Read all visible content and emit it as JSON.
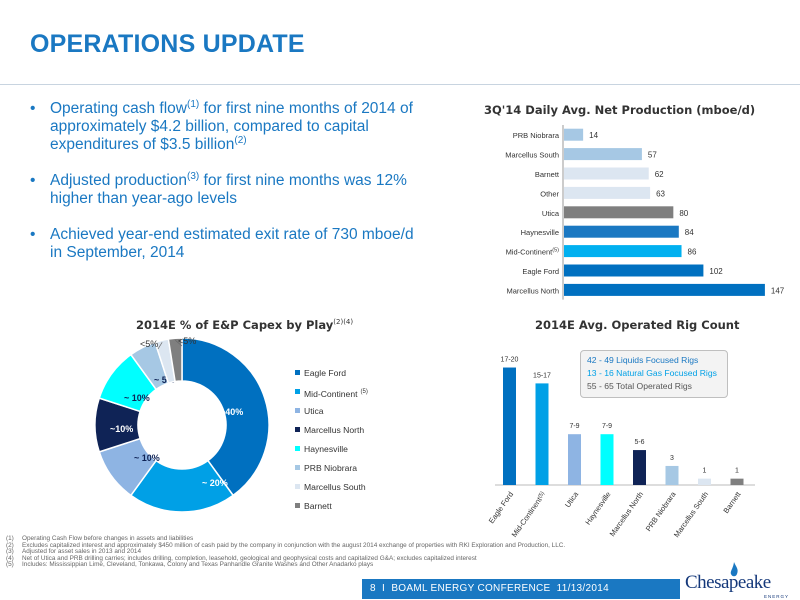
{
  "title": "OPERATIONS UPDATE",
  "bullets": [
    {
      "text_a": "Operating cash flow",
      "sup_a": "(1)",
      "text_b": " for first nine months of 2014 of approximately $4.2 billion, compared to capital expenditures of $3.5 billion",
      "sup_b": "(2)"
    },
    {
      "text_a": "Adjusted production",
      "sup_a": "(3)",
      "text_b": " for first nine months was 12% higher than year-ago levels",
      "sup_b": ""
    },
    {
      "text_a": "Achieved year-end estimated exit rate of 730 mboe/d in September, 2014",
      "sup_a": "",
      "text_b": "",
      "sup_b": ""
    }
  ],
  "chart_data": [
    {
      "type": "bar",
      "orientation": "horizontal",
      "title": "3Q'14 Daily Avg. Net Production (mboe/d)",
      "categories": [
        "PRB Niobrara",
        "Marcellus South",
        "Barnett",
        "Other",
        "Utica",
        "Haynesville",
        "Mid-Continent",
        "Eagle Ford",
        "Marcellus North"
      ],
      "category_sups": [
        "",
        "",
        "",
        "",
        "",
        "",
        "(5)",
        "",
        ""
      ],
      "values": [
        14,
        57,
        62,
        63,
        80,
        84,
        86,
        102,
        147
      ],
      "colors": [
        "#a6c8e4",
        "#a6c8e4",
        "#dce6f1",
        "#dce6f1",
        "#7f7f7f",
        "#1a78c2",
        "#00b0f0",
        "#0070c0",
        "#0070c0"
      ],
      "xlim": [
        0,
        150
      ],
      "grid": false,
      "legend": "none"
    },
    {
      "type": "pie",
      "title": "2014E % of E&P Capex by Play",
      "title_sup": "(2)(4)",
      "slices": [
        {
          "name": "Eagle Ford",
          "sup": "",
          "value": 40,
          "label": "~40%",
          "color": "#0070c0"
        },
        {
          "name": "Mid-Continent",
          "sup": "(5)",
          "value": 20,
          "label": "~ 20%",
          "color": "#00a0e6"
        },
        {
          "name": "Utica",
          "sup": "",
          "value": 10,
          "label": "~ 10%",
          "color": "#8eb4e3"
        },
        {
          "name": "Marcellus North",
          "sup": "",
          "value": 10,
          "label": "~10%",
          "color": "#0f2356"
        },
        {
          "name": "Haynesville",
          "sup": "",
          "value": 10,
          "label": "~ 10%",
          "color": "#00ffff"
        },
        {
          "name": "PRB Niobrara",
          "sup": "",
          "value": 5,
          "label": "~ 5%",
          "color": "#a6c8e4"
        },
        {
          "name": "Marcellus South",
          "sup": "",
          "value": 2.5,
          "label": "<5%",
          "color": "#dce6f1"
        },
        {
          "name": "Barnett",
          "sup": "",
          "value": 2.5,
          "label": "<5%",
          "color": "#7f7f7f"
        }
      ],
      "donut": true,
      "legend": "right"
    },
    {
      "type": "bar",
      "title": "2014E Avg. Operated Rig Count",
      "categories": [
        "Eagle Ford",
        "Mid-Continent",
        "Utica",
        "Haynesville",
        "Marcellus North",
        "PRB Niobrara",
        "Marcellus South",
        "Barnett"
      ],
      "category_sups": [
        "",
        "(5)",
        "",
        "",
        "",
        "",
        "",
        ""
      ],
      "values": [
        18.5,
        16,
        8,
        8,
        5.5,
        3,
        1,
        1
      ],
      "value_labels": [
        "17-20",
        "15-17",
        "7-9",
        "7-9",
        "5-6",
        "3",
        "1",
        "1"
      ],
      "colors": [
        "#0070c0",
        "#00a0e6",
        "#8eb4e3",
        "#00ffff",
        "#0f2356",
        "#a6c8e4",
        "#dce6f1",
        "#7f7f7f"
      ],
      "ylim": [
        0,
        20
      ],
      "grid": false,
      "legend_box": [
        {
          "text": "42 - 49 Liquids Focused Rigs",
          "color": "#1a78c2"
        },
        {
          "text": "13 - 16 Natural Gas Focused Rigs",
          "color": "#00a0e6"
        },
        {
          "text": "55 - 65 Total Operated Rigs",
          "color": "#555555"
        }
      ]
    }
  ],
  "footnotes": [
    {
      "num": "(1)",
      "text": "Operating Cash Flow before changes in assets and liabilities"
    },
    {
      "num": "(2)",
      "text": "Excludes capitalized interest and approximately $450 million of cash paid by the company in conjunction with the august 2014 exchange of properties with RKI Exploration and Production, LLC."
    },
    {
      "num": "(3)",
      "text": "Adjusted for asset sales in 2013 and 2014"
    },
    {
      "num": "(4)",
      "text": "Net of Utica and PRB drilling carries; includes drilling, completion, leasehold, geological and geophysical costs and capitalized G&A; excludes capitalized interest"
    },
    {
      "num": "(5)",
      "text": "Includes: Mississippian Lime, Cleveland, Tonkawa, Colony and Texas Panhandle Granite Washes and Other Anadarko plays"
    }
  ],
  "footer": {
    "page": "8",
    "sep": "I",
    "event": "BOAML ENERGY CONFERENCE",
    "date": "11/13/2014"
  },
  "logo": {
    "name": "Chesapeake",
    "sub": "ENERGY",
    "icon": "flame-icon"
  }
}
